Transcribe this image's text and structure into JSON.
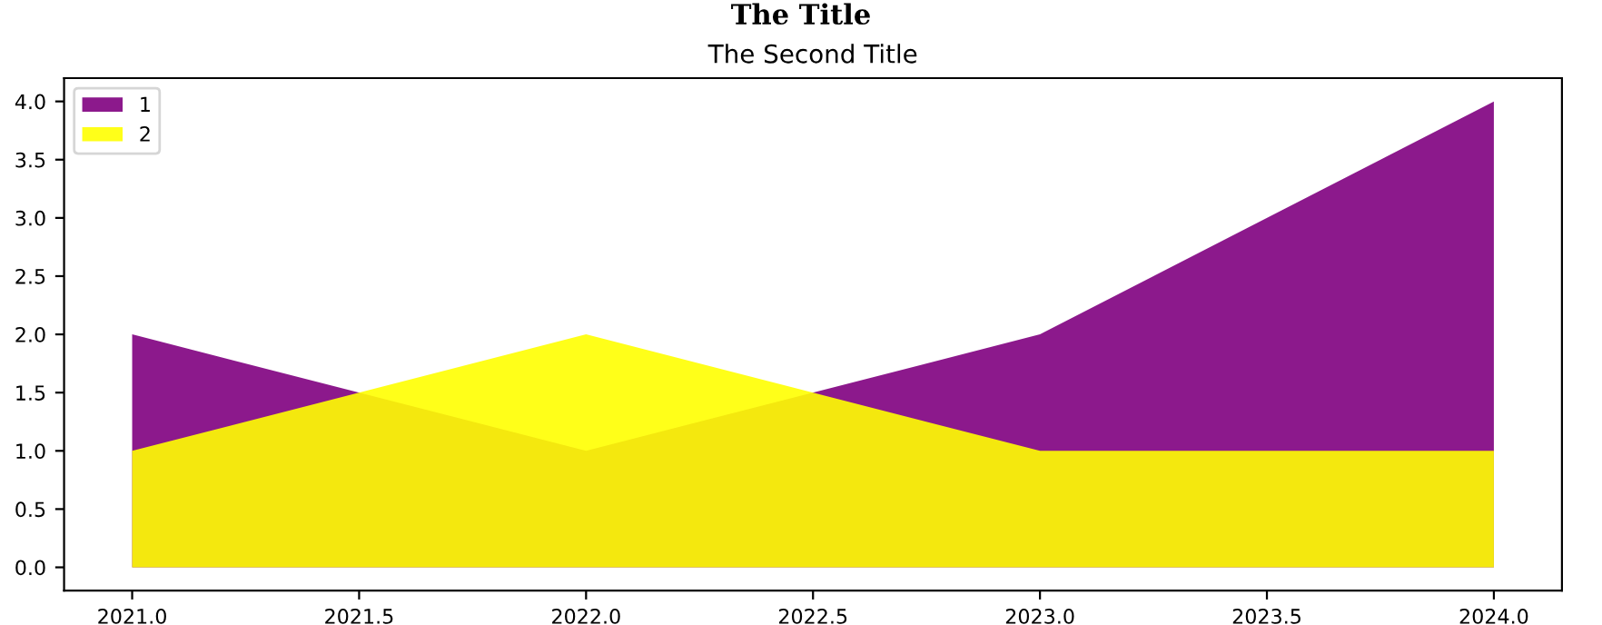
{
  "chart_data": {
    "type": "area",
    "title": "The Title",
    "subtitle": "The Second Title",
    "x": [
      2021,
      2022,
      2023,
      2024
    ],
    "series": [
      {
        "name": "1",
        "color": "#800080",
        "values": [
          2,
          1,
          2,
          4
        ]
      },
      {
        "name": "2",
        "color": "#ffff00",
        "values": [
          1,
          2,
          1,
          1
        ]
      }
    ],
    "xlim": [
      2020.85,
      2024.15
    ],
    "ylim": [
      -0.2,
      4.2
    ],
    "xticks": [
      {
        "value": 2021,
        "label": "2021.0"
      },
      {
        "value": 2021.5,
        "label": "2021.5"
      },
      {
        "value": 2022,
        "label": "2022.0"
      },
      {
        "value": 2022.5,
        "label": "2022.5"
      },
      {
        "value": 2023,
        "label": "2023.0"
      },
      {
        "value": 2023.5,
        "label": "2023.5"
      },
      {
        "value": 2024,
        "label": "2024.0"
      }
    ],
    "yticks": [
      {
        "value": 0,
        "label": "0.0"
      },
      {
        "value": 0.5,
        "label": "0.5"
      },
      {
        "value": 1,
        "label": "1.0"
      },
      {
        "value": 1.5,
        "label": "1.5"
      },
      {
        "value": 2,
        "label": "2.0"
      },
      {
        "value": 2.5,
        "label": "2.5"
      },
      {
        "value": 3,
        "label": "3.0"
      },
      {
        "value": 3.5,
        "label": "3.5"
      },
      {
        "value": 4,
        "label": "4.0"
      }
    ],
    "grid": false,
    "legend": "top left"
  }
}
